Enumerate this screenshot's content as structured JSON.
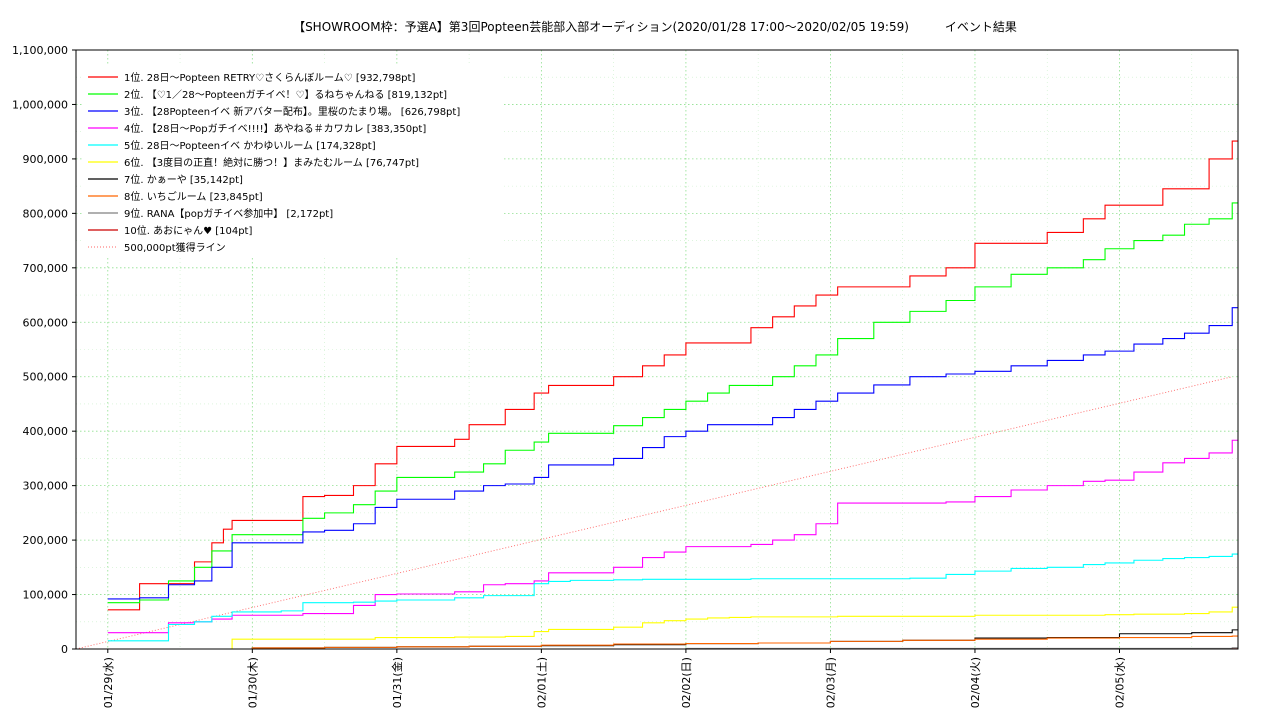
{
  "chart_data": {
    "type": "line",
    "title": "【SHOWROOM枠：予選A】第3回Popteen芸能部入部オーディション(2020/01/28 17:00～2020/02/05 19:59)　　　イベント結果",
    "xlabel": "",
    "ylabel": "",
    "x_ticks": [
      "01/29(水)",
      "01/30(木)",
      "01/31(金)",
      "02/01(土)",
      "02/02(日)",
      "02/03(月)",
      "02/04(火)",
      "02/05(水)"
    ],
    "y_ticks": [
      "0",
      "100,000",
      "200,000",
      "300,000",
      "400,000",
      "500,000",
      "600,000",
      "700,000",
      "800,000",
      "900,000",
      "1,000,000",
      "1,100,000"
    ],
    "xlim": [
      -0.22,
      7.82
    ],
    "ylim": [
      0,
      1100000
    ],
    "grid": true,
    "legend_position": "top-left",
    "series": [
      {
        "name": "1位. 28日～Popteen RETRY♡さくらんぼルーム♡ [932,798pt]",
        "color": "#ff0000",
        "x": [
          0.0,
          0.22,
          0.3,
          0.42,
          0.6,
          0.72,
          0.8,
          0.86,
          1.0,
          1.2,
          1.35,
          1.5,
          1.7,
          1.85,
          2.0,
          2.2,
          2.4,
          2.5,
          2.6,
          2.75,
          2.95,
          3.05,
          3.2,
          3.35,
          3.5,
          3.7,
          3.85,
          4.0,
          4.15,
          4.3,
          4.45,
          4.6,
          4.75,
          4.9,
          5.05,
          5.3,
          5.55,
          5.8,
          6.0,
          6.25,
          6.5,
          6.75,
          6.9,
          7.1,
          7.3,
          7.45,
          7.62,
          7.78
        ],
        "y": [
          72000,
          120000,
          120000,
          120000,
          160000,
          195000,
          220000,
          236000,
          236000,
          236000,
          280000,
          282000,
          300000,
          340000,
          372000,
          372000,
          385000,
          412000,
          412000,
          440000,
          470000,
          484000,
          484000,
          484000,
          500000,
          520000,
          540000,
          562000,
          562000,
          562000,
          590000,
          610000,
          630000,
          650000,
          665000,
          665000,
          685000,
          700000,
          745000,
          745000,
          765000,
          790000,
          815000,
          815000,
          845000,
          845000,
          900000,
          932798
        ]
      },
      {
        "name": "2位. 【♡1／28～Popteenガチイベ！♡】るねちゃんねる [819,132pt]",
        "color": "#00ff00",
        "x": [
          0.0,
          0.22,
          0.42,
          0.6,
          0.72,
          0.86,
          1.0,
          1.2,
          1.35,
          1.5,
          1.7,
          1.85,
          2.0,
          2.2,
          2.4,
          2.6,
          2.75,
          2.95,
          3.05,
          3.2,
          3.35,
          3.5,
          3.7,
          3.85,
          4.0,
          4.15,
          4.3,
          4.45,
          4.6,
          4.75,
          4.9,
          5.05,
          5.3,
          5.55,
          5.8,
          6.0,
          6.25,
          6.5,
          6.75,
          6.9,
          7.1,
          7.3,
          7.45,
          7.62,
          7.78
        ],
        "y": [
          85000,
          90000,
          125000,
          150000,
          180000,
          210000,
          210000,
          210000,
          240000,
          250000,
          265000,
          290000,
          315000,
          315000,
          325000,
          340000,
          365000,
          380000,
          396000,
          396000,
          396000,
          410000,
          425000,
          440000,
          455000,
          470000,
          484000,
          484000,
          500000,
          520000,
          540000,
          570000,
          600000,
          620000,
          640000,
          665000,
          688000,
          700000,
          715000,
          735000,
          750000,
          760000,
          780000,
          790000,
          819132
        ]
      },
      {
        "name": "3位. 【28Popteenイベ 新アバター配布】。里桜のたまり場。 [626,798pt]",
        "color": "#0000ff",
        "x": [
          0.0,
          0.22,
          0.42,
          0.6,
          0.72,
          0.86,
          1.0,
          1.2,
          1.35,
          1.5,
          1.7,
          1.85,
          2.0,
          2.2,
          2.4,
          2.6,
          2.75,
          2.95,
          3.05,
          3.2,
          3.35,
          3.5,
          3.7,
          3.85,
          4.0,
          4.15,
          4.3,
          4.45,
          4.6,
          4.75,
          4.9,
          5.05,
          5.3,
          5.55,
          5.8,
          6.0,
          6.25,
          6.5,
          6.75,
          6.9,
          7.1,
          7.3,
          7.45,
          7.62,
          7.78
        ],
        "y": [
          92000,
          94000,
          118000,
          125000,
          150000,
          195000,
          195000,
          195000,
          215000,
          218000,
          230000,
          260000,
          275000,
          275000,
          290000,
          300000,
          303000,
          315000,
          338000,
          338000,
          338000,
          350000,
          370000,
          390000,
          400000,
          412000,
          412000,
          412000,
          425000,
          440000,
          455000,
          470000,
          485000,
          500000,
          505000,
          510000,
          520000,
          530000,
          540000,
          547000,
          560000,
          570000,
          580000,
          594000,
          626798
        ]
      },
      {
        "name": "4位. 【28日～Popガチイベ!!!!】あやねる＃カワカレ [383,350pt]",
        "color": "#ff00ff",
        "x": [
          0.0,
          0.22,
          0.42,
          0.6,
          0.72,
          0.86,
          1.0,
          1.2,
          1.35,
          1.5,
          1.7,
          1.85,
          2.0,
          2.2,
          2.4,
          2.6,
          2.75,
          2.95,
          3.05,
          3.2,
          3.35,
          3.5,
          3.7,
          3.85,
          4.0,
          4.15,
          4.3,
          4.45,
          4.6,
          4.75,
          4.9,
          5.05,
          5.3,
          5.55,
          5.8,
          6.0,
          6.25,
          6.5,
          6.75,
          6.9,
          7.1,
          7.3,
          7.45,
          7.62,
          7.78
        ],
        "y": [
          30000,
          30000,
          48000,
          50000,
          55000,
          62000,
          62000,
          62000,
          65000,
          65000,
          80000,
          100000,
          101000,
          101000,
          105000,
          118000,
          120000,
          125000,
          140000,
          140000,
          140000,
          150000,
          168000,
          178000,
          188000,
          188000,
          188000,
          192000,
          200000,
          210000,
          230000,
          268000,
          268000,
          268000,
          270000,
          280000,
          292000,
          300000,
          308000,
          310000,
          325000,
          342000,
          350000,
          360000,
          383350
        ]
      },
      {
        "name": "5位. 28日～Popteenイベ かわゆいルーム [174,328pt]",
        "color": "#00ffff",
        "x": [
          0.0,
          0.22,
          0.42,
          0.6,
          0.72,
          0.86,
          1.0,
          1.2,
          1.35,
          1.5,
          1.7,
          1.85,
          2.0,
          2.2,
          2.4,
          2.6,
          2.75,
          2.95,
          3.05,
          3.2,
          3.35,
          3.5,
          3.7,
          3.85,
          4.0,
          4.15,
          4.3,
          4.45,
          4.6,
          4.75,
          4.9,
          5.05,
          5.3,
          5.55,
          5.8,
          6.0,
          6.25,
          6.5,
          6.75,
          6.9,
          7.1,
          7.3,
          7.45,
          7.62,
          7.78
        ],
        "y": [
          15000,
          15000,
          45000,
          50000,
          60000,
          68000,
          68000,
          70000,
          85000,
          85000,
          86000,
          88000,
          90000,
          90000,
          94000,
          98000,
          98000,
          120000,
          124000,
          126000,
          126000,
          127000,
          128000,
          128000,
          128000,
          128000,
          128000,
          129000,
          129000,
          129000,
          129000,
          129000,
          129000,
          130000,
          137000,
          143000,
          148000,
          150000,
          155000,
          158000,
          163000,
          166000,
          168000,
          170000,
          174328
        ]
      },
      {
        "name": "6位. 【3度目の正直！絶対に勝つ！】まみたむルーム [76,747pt]",
        "color": "#ffff00",
        "x": [
          0.0,
          0.22,
          0.42,
          0.6,
          0.72,
          0.86,
          1.0,
          1.2,
          1.35,
          1.5,
          1.7,
          1.85,
          2.0,
          2.2,
          2.4,
          2.6,
          2.75,
          2.95,
          3.05,
          3.2,
          3.35,
          3.5,
          3.7,
          3.85,
          4.0,
          4.15,
          4.3,
          4.45,
          4.6,
          4.75,
          4.9,
          5.05,
          5.3,
          5.55,
          5.8,
          6.0,
          6.25,
          6.5,
          6.75,
          6.9,
          7.1,
          7.3,
          7.45,
          7.62,
          7.78
        ],
        "y": [
          0,
          0,
          0,
          0,
          0,
          18000,
          18000,
          18000,
          18000,
          18000,
          18000,
          21000,
          21000,
          21000,
          22000,
          22000,
          23000,
          32000,
          36000,
          36000,
          36000,
          40000,
          48000,
          52000,
          55000,
          57000,
          58000,
          59000,
          59000,
          59000,
          59000,
          60000,
          60000,
          60000,
          60000,
          62000,
          62000,
          62000,
          62000,
          63000,
          64000,
          64000,
          65000,
          68000,
          76747
        ]
      },
      {
        "name": "7位. かぁーや [35,142pt]",
        "color": "#000000",
        "x": [
          0.0,
          0.5,
          1.0,
          1.5,
          2.0,
          2.5,
          3.0,
          3.5,
          4.0,
          4.5,
          4.9,
          5.0,
          5.5,
          6.0,
          6.5,
          6.9,
          7.0,
          7.5,
          7.78
        ],
        "y": [
          0,
          0,
          2000,
          3000,
          4000,
          5000,
          6000,
          8000,
          10000,
          11000,
          11000,
          14000,
          16000,
          20000,
          21000,
          21000,
          28000,
          30000,
          35142
        ]
      },
      {
        "name": "8位. いちごルーム [23,845pt]",
        "color": "#ff6600",
        "x": [
          0.0,
          0.5,
          1.0,
          1.5,
          2.0,
          2.5,
          3.0,
          3.5,
          4.0,
          4.5,
          5.0,
          5.5,
          6.0,
          6.5,
          7.0,
          7.5,
          7.78
        ],
        "y": [
          0,
          0,
          2000,
          3000,
          4000,
          5000,
          7000,
          9000,
          10000,
          11000,
          14000,
          16000,
          18000,
          20000,
          21000,
          23000,
          23845
        ]
      },
      {
        "name": "9位. RANA【popガチイベ参加中】 [2,172pt]",
        "color": "#808080",
        "x": [
          0.0,
          4.0,
          7.78
        ],
        "y": [
          0,
          1000,
          2172
        ]
      },
      {
        "name": "10位. あおにゃん♥ [104pt]",
        "color": "#cc0000",
        "x": [
          0.0,
          7.78
        ],
        "y": [
          0,
          104
        ]
      },
      {
        "name": "500,000pt獲得ライン",
        "color": "#ff6666",
        "dotted": true,
        "x": [
          -0.22,
          7.78
        ],
        "y": [
          0,
          500000
        ]
      }
    ]
  }
}
